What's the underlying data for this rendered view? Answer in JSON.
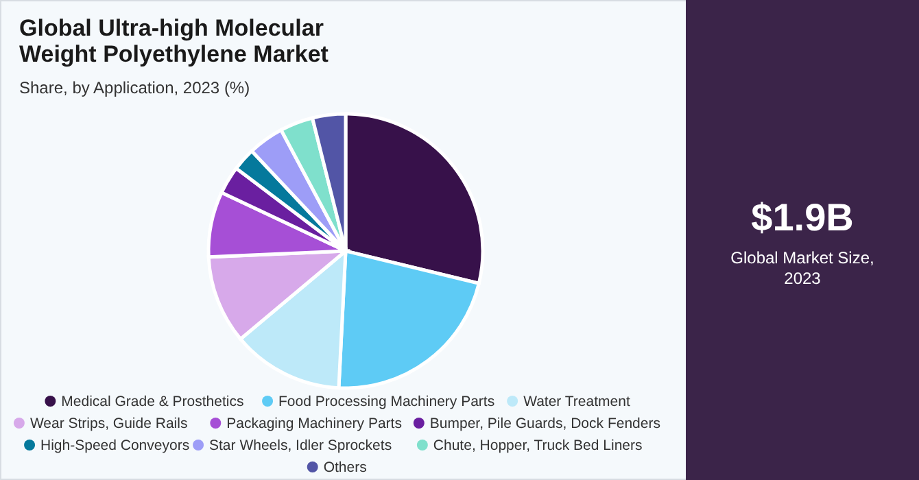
{
  "chart_data": [
    {
      "type": "pie",
      "title": "Global Ultra-high Molecular Weight Polyethylene Market",
      "subtitle": "Share, by Application, 2023 (%)",
      "categories": [
        "Medical Grade & Prosthetics",
        "Food Processing Machinery Parts",
        "Water Treatment",
        "Wear Strips, Guide Rails",
        "Packaging Machinery Parts",
        "Bumper, Pile Guards, Dock Fenders",
        "High-Speed Conveyors",
        "Star Wheels, Idler Sprockets",
        "Chute, Hopper, Truck Bed Liners",
        "Others"
      ],
      "values": [
        28.8,
        22,
        13.1,
        10.4,
        7.7,
        3.3,
        2.7,
        4.2,
        3.9,
        3.9
      ],
      "colors": [
        "#37114a",
        "#5ecbf5",
        "#bde9f9",
        "#d7a9ea",
        "#a64fd6",
        "#6a1fa0",
        "#05799c",
        "#9d9df7",
        "#7fe0cc",
        "#5255a6"
      ],
      "legend": "bottom"
    },
    {
      "type": "other",
      "title": "$1.9B",
      "subtitle": "Global Market Size, 2023"
    }
  ]
}
